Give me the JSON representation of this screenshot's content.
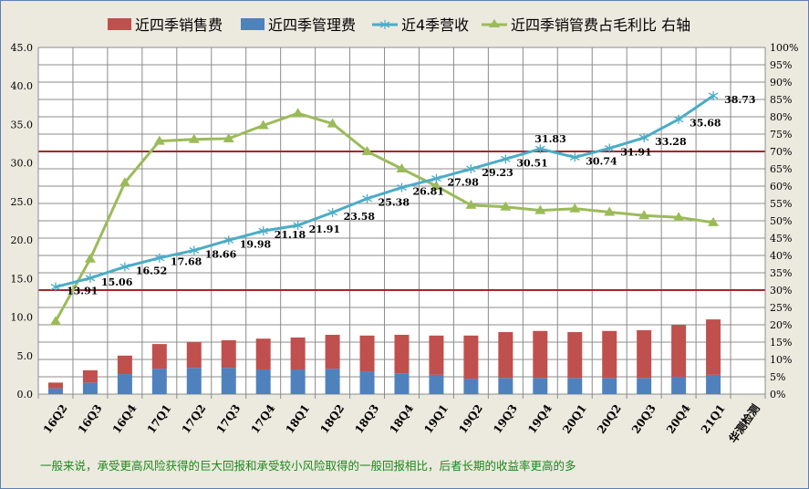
{
  "chart_data": {
    "type": "bar+line",
    "title": "",
    "legend_position": "top",
    "legend": [
      "近四季销售费",
      "近四季管理费",
      "近4季营收",
      "近四季销管费占毛利比 右轴"
    ],
    "categories": [
      "16Q2",
      "16Q3",
      "16Q4",
      "17Q1",
      "17Q2",
      "17Q3",
      "17Q4",
      "18Q1",
      "18Q2",
      "18Q3",
      "18Q4",
      "19Q1",
      "19Q2",
      "19Q3",
      "19Q4",
      "20Q1",
      "20Q2",
      "20Q3",
      "20Q4",
      "21Q1"
    ],
    "extra_category_label": "华测检测",
    "left_axis": {
      "ylim": [
        0,
        45
      ],
      "ticks": [
        "0.0",
        "5.0",
        "10.0",
        "15.0",
        "20.0",
        "25.0",
        "30.0",
        "35.0",
        "40.0",
        "45.0"
      ]
    },
    "right_axis": {
      "ylim": [
        0,
        100
      ],
      "ticks": [
        "0%",
        "5%",
        "10%",
        "15%",
        "20%",
        "25%",
        "30%",
        "35%",
        "40%",
        "45%",
        "50%",
        "55%",
        "60%",
        "65%",
        "70%",
        "75%",
        "80%",
        "85%",
        "90%",
        "95%",
        "100%"
      ]
    },
    "series": [
      {
        "name": "近四季管理费",
        "type": "stacked-bar",
        "axis": "left",
        "color": "#4F81BD",
        "values": [
          0.75,
          1.5,
          2.6,
          3.3,
          3.4,
          3.4,
          3.2,
          3.2,
          3.3,
          2.95,
          2.7,
          2.5,
          2.0,
          2.1,
          2.1,
          2.1,
          2.1,
          2.1,
          2.25,
          2.5
        ]
      },
      {
        "name": "近四季销售费",
        "type": "stacked-bar",
        "axis": "left",
        "color": "#C0504D",
        "values": [
          0.75,
          1.6,
          2.4,
          3.2,
          3.35,
          3.6,
          4.0,
          4.15,
          4.4,
          4.65,
          5.0,
          5.1,
          5.6,
          5.95,
          6.1,
          5.95,
          6.1,
          6.2,
          6.75,
          7.2
        ]
      },
      {
        "name": "近4季营收",
        "type": "line",
        "axis": "left",
        "color": "#4BACC6",
        "values": [
          13.91,
          15.06,
          16.52,
          17.68,
          18.66,
          19.98,
          21.18,
          21.91,
          23.58,
          25.38,
          26.81,
          27.98,
          29.23,
          30.51,
          31.83,
          30.74,
          31.91,
          33.28,
          35.68,
          38.73
        ],
        "labels": [
          "13.91",
          "15.06",
          "16.52",
          "17.68",
          "18.66",
          "19.98",
          "21.18",
          "21.91",
          "23.58",
          "25.38",
          "26.81",
          "27.98",
          "29.23",
          "30.51",
          "31.83",
          "30.74",
          "31.91",
          "33.28",
          "35.68",
          "38.73"
        ]
      },
      {
        "name": "近四季销管费占毛利比 右轴",
        "type": "line",
        "axis": "right",
        "color": "#9BBB59",
        "values": [
          21,
          39,
          61,
          73,
          73.5,
          73.7,
          77.5,
          81,
          78,
          70,
          65,
          60,
          54.5,
          54,
          53,
          53.5,
          52.5,
          51.5,
          51,
          49.5
        ]
      }
    ],
    "reference_lines": [
      {
        "axis": "right",
        "value": 70,
        "color": "#A0282A"
      },
      {
        "axis": "right",
        "value": 30,
        "color": "#A0282A"
      }
    ],
    "note": "一般来说，承受更高风险获得的巨大回报和承受较小风险取得的一般回报相比，后者长期的收益率更高的多"
  }
}
